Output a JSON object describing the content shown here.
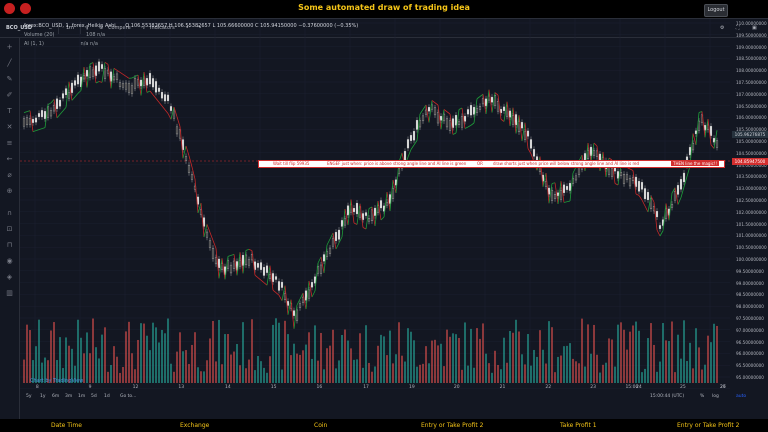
{
  "header": {
    "title": "Some automated draw of trading idea",
    "logout_label": "Logout"
  },
  "toolbar": {
    "symbol": "BCO_USD",
    "interval": "1m",
    "compare_label": "Compare",
    "indicators_label": "Indicators"
  },
  "legend": {
    "symbol_line": "forex:BCO_USD, 1, forex, Heikin Ashi",
    "ohlc": "O 106.55382657  H 106.55382657  L 105.66600000  C 105.94150000  −0.37600000 (−0.35%)",
    "volume": "Volume (20)",
    "volume_val": "108  n/a",
    "ai": "AI (1, 1)",
    "ai_val": "n/a  n/a"
  },
  "annotation": {
    "label1": "Wait till flip 59935",
    "label2": "ENGEF just when:  price is above strong angle line and AI line is green",
    "label3": "OR",
    "label4": "draw shorts just when price will below strong angle line and AI line is red",
    "label5": "THEN line the magic!!"
  },
  "price_axis": {
    "ticks": [
      "110.00000000",
      "109.50000000",
      "109.00000000",
      "108.50000000",
      "108.00000000",
      "107.50000000",
      "107.00000000",
      "106.50000000",
      "106.00000000",
      "105.50000000",
      "105.00000000",
      "104.50000000",
      "104.00000000",
      "103.50000000",
      "103.00000000",
      "102.50000000",
      "102.00000000",
      "101.50000000",
      "101.00000000",
      "100.50000000",
      "100.00000000",
      "99.50000000",
      "99.00000000",
      "98.50000000",
      "98.00000000",
      "97.50000000",
      "97.00000000",
      "96.50000000",
      "96.00000000",
      "95.50000000",
      "95.00000000"
    ],
    "current_price": "105.96276875",
    "red_price": "104.85947500"
  },
  "time_axis": {
    "ticks": [
      "8",
      "9",
      "12",
      "13",
      "14",
      "15",
      "16",
      "17",
      "19",
      "20",
      "21",
      "22",
      "23",
      "24",
      "25",
      "26",
      "27",
      "15:00"
    ]
  },
  "bottom": {
    "ranges": [
      "5y",
      "1y",
      "6m",
      "3m",
      "1m",
      "5d",
      "1d"
    ],
    "goto": "Go to...",
    "clock": "15:00:44 (UTC)",
    "pct": "%",
    "log": "log",
    "auto": "auto",
    "watermark": "Chart by TradingView"
  },
  "footer": {
    "items": [
      "Date Time",
      "Exchange",
      "Coin",
      "Entry or Take Profit 2",
      "Take Profit 1",
      "Entry or Take Profit 2"
    ]
  },
  "colors": {
    "up": "#26a69a",
    "down": "#ef5350",
    "ai_green": "#1e9e3a",
    "ai_red": "#c62828",
    "accent": "#f5c518"
  }
}
